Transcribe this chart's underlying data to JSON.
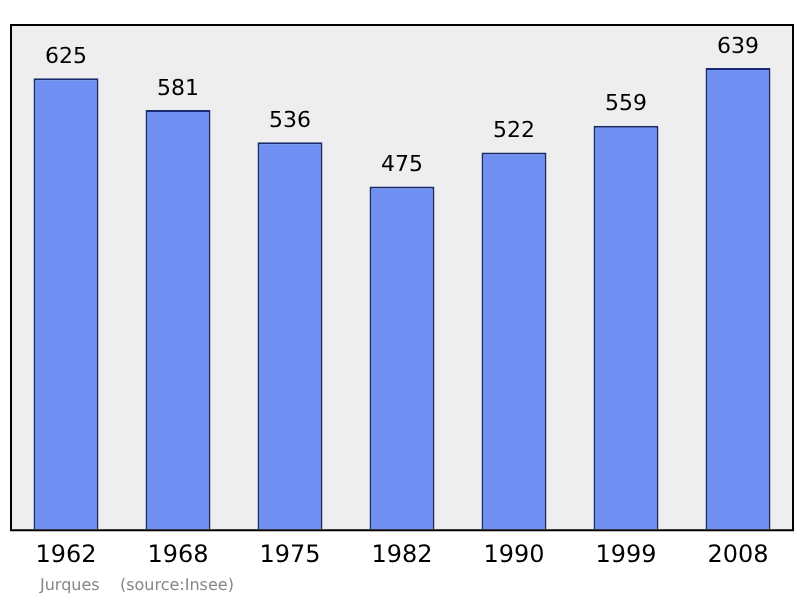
{
  "chart_data": {
    "type": "bar",
    "categories": [
      "1962",
      "1968",
      "1975",
      "1982",
      "1990",
      "1999",
      "2008"
    ],
    "values": [
      625,
      581,
      536,
      475,
      522,
      559,
      639
    ],
    "color": "#6f8ff2",
    "data_labels": true,
    "grid": false,
    "legend": false,
    "annotations": [
      "Jurques    (source:Insee)"
    ]
  }
}
